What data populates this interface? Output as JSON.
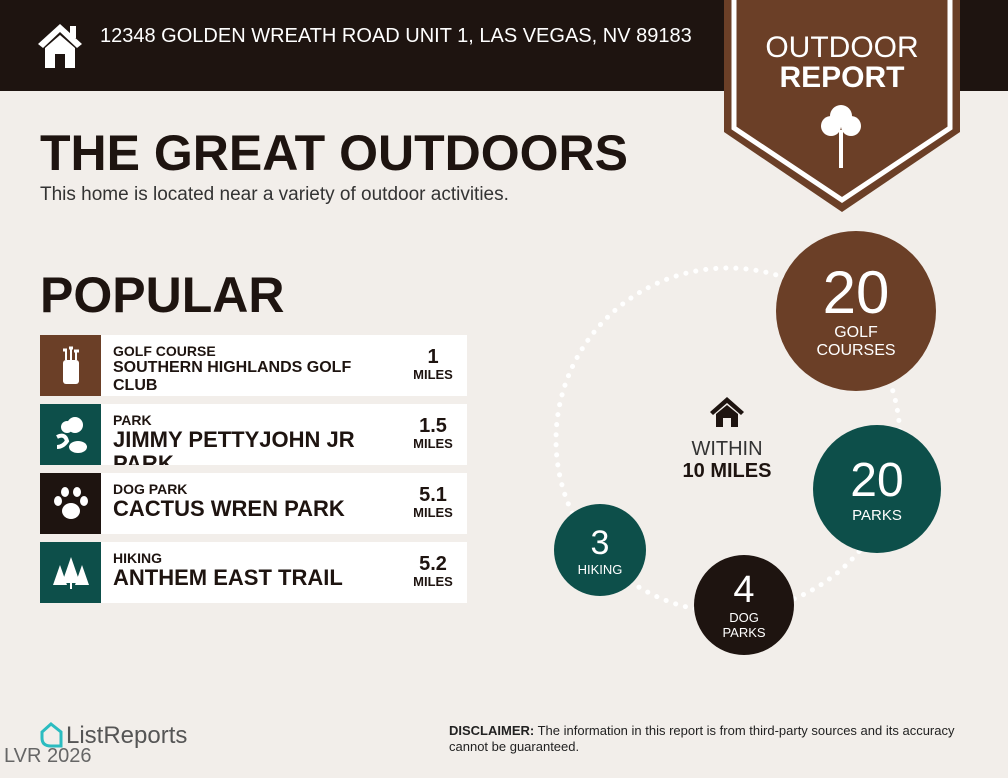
{
  "header": {
    "address": "12348 GOLDEN WREATH ROAD UNIT 1, LAS VEGAS, NV 89183",
    "icon": "house-icon"
  },
  "badge": {
    "line1": "OUTDOOR",
    "line2": "REPORT",
    "icon": "tree-icon",
    "color": "#6b3f27"
  },
  "title": "THE GREAT OUTDOORS",
  "subtitle": "This home is located near a variety of outdoor activities.",
  "popular": {
    "heading": "POPULAR",
    "items": [
      {
        "category": "GOLF COURSE",
        "name": "SOUTHERN HIGHLANDS GOLF CLUB",
        "distance": "1",
        "unit": "MILES",
        "icon": "golf-bag-icon",
        "color": "#6b3f27"
      },
      {
        "category": "PARK",
        "name": "JIMMY PETTYJOHN JR PARK",
        "distance": "1.5",
        "unit": "MILES",
        "icon": "park-icon",
        "color": "#0d4f4a"
      },
      {
        "category": "DOG PARK",
        "name": "CACTUS WREN PARK",
        "distance": "5.1",
        "unit": "MILES",
        "icon": "paw-icon",
        "color": "#1e1410"
      },
      {
        "category": "HIKING",
        "name": "ANTHEM EAST TRAIL",
        "distance": "5.2",
        "unit": "MILES",
        "icon": "pine-trees-icon",
        "color": "#0d4f4a"
      }
    ]
  },
  "summary": {
    "within": "WITHIN",
    "radius": "10 MILES",
    "golf": {
      "count": "20",
      "label1": "GOLF",
      "label2": "COURSES"
    },
    "parks": {
      "count": "20",
      "label1": "PARKS"
    },
    "dog": {
      "count": "4",
      "label1": "DOG",
      "label2": "PARKS"
    },
    "hiking": {
      "count": "3",
      "label1": "HIKING"
    }
  },
  "footer": {
    "brand": "ListReports",
    "watermark": "LVR 2026",
    "disclaimer_label": "DISCLAIMER:",
    "disclaimer": " The information in this report is from third-party sources and its accuracy cannot be guaranteed."
  }
}
